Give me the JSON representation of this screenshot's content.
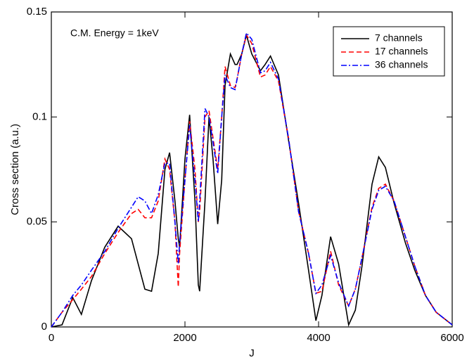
{
  "chart_data": {
    "type": "line",
    "xlabel": "J",
    "ylabel": "Cross section (a.u.)",
    "annotation": "C.M. Energy = 1keV",
    "x": [
      0,
      160,
      320,
      450,
      600,
      800,
      1000,
      1200,
      1300,
      1400,
      1500,
      1600,
      1700,
      1770,
      1850,
      1900,
      1920,
      2000,
      2070,
      2150,
      2200,
      2220,
      2300,
      2360,
      2420,
      2490,
      2550,
      2600,
      2680,
      2750,
      2780,
      2850,
      2920,
      3000,
      3130,
      3200,
      3280,
      3400,
      3550,
      3700,
      3850,
      3960,
      4050,
      4180,
      4300,
      4450,
      4550,
      4650,
      4800,
      4900,
      5000,
      5130,
      5300,
      5440,
      5600,
      5760,
      6000
    ],
    "series": [
      {
        "name": "7 channels",
        "color": "#000000",
        "style": "solid",
        "values": [
          0,
          0.001,
          0.014,
          0.006,
          0.022,
          0.038,
          0.048,
          0.042,
          0.03,
          0.018,
          0.017,
          0.035,
          0.075,
          0.083,
          0.06,
          0.042,
          0.038,
          0.08,
          0.101,
          0.06,
          0.02,
          0.017,
          0.06,
          0.1,
          0.08,
          0.049,
          0.07,
          0.115,
          0.13,
          0.125,
          0.125,
          0.13,
          0.139,
          0.13,
          0.122,
          0.125,
          0.129,
          0.12,
          0.089,
          0.059,
          0.027,
          0.003,
          0.015,
          0.043,
          0.03,
          0.001,
          0.008,
          0.029,
          0.068,
          0.081,
          0.076,
          0.059,
          0.04,
          0.027,
          0.015,
          0.007,
          0.001
        ]
      },
      {
        "name": "17 channels",
        "color": "#ff0000",
        "style": "dashed",
        "values": [
          0,
          0.007,
          0.013,
          0.018,
          0.024,
          0.035,
          0.045,
          0.054,
          0.056,
          0.052,
          0.052,
          0.06,
          0.08,
          0.075,
          0.05,
          0.019,
          0.035,
          0.07,
          0.098,
          0.075,
          0.05,
          0.055,
          0.1,
          0.103,
          0.09,
          0.075,
          0.1,
          0.124,
          0.115,
          0.114,
          0.118,
          0.13,
          0.139,
          0.135,
          0.119,
          0.12,
          0.124,
          0.117,
          0.09,
          0.055,
          0.035,
          0.016,
          0.017,
          0.036,
          0.02,
          0.01,
          0.018,
          0.033,
          0.057,
          0.066,
          0.068,
          0.06,
          0.043,
          0.029,
          0.015,
          0.007,
          0.001
        ]
      },
      {
        "name": "36 channels",
        "color": "#0000ff",
        "style": "dashdot",
        "values": [
          0,
          0.007,
          0.015,
          0.02,
          0.027,
          0.036,
          0.047,
          0.057,
          0.062,
          0.06,
          0.054,
          0.063,
          0.078,
          0.078,
          0.05,
          0.03,
          0.04,
          0.07,
          0.096,
          0.07,
          0.05,
          0.06,
          0.104,
          0.1,
          0.088,
          0.073,
          0.1,
          0.12,
          0.114,
          0.113,
          0.118,
          0.13,
          0.14,
          0.137,
          0.121,
          0.122,
          0.126,
          0.118,
          0.09,
          0.055,
          0.035,
          0.016,
          0.02,
          0.034,
          0.021,
          0.01,
          0.018,
          0.033,
          0.056,
          0.065,
          0.067,
          0.06,
          0.043,
          0.029,
          0.015,
          0.007,
          0.001
        ]
      }
    ],
    "xlim": [
      0,
      6000
    ],
    "xticks": [
      0,
      2000,
      4000,
      6000
    ],
    "ylim": [
      0,
      0.15
    ],
    "yticks": [
      0,
      0.05,
      0.1,
      0.15
    ],
    "legend": "upper right"
  }
}
